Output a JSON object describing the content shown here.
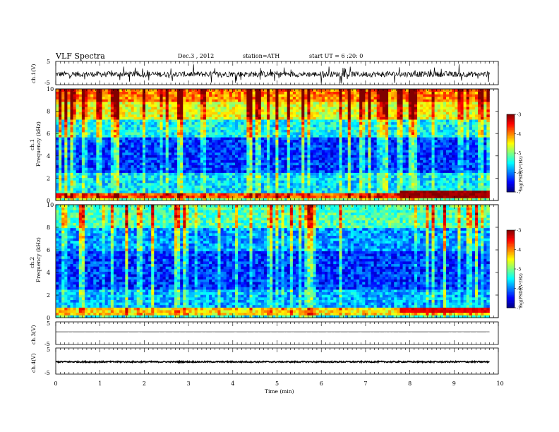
{
  "header": {
    "title": "VLF  Spectra",
    "date": "Dec.3  , 2012",
    "station": "station=ATH",
    "start": "start  UT  =    6  :20: 0"
  },
  "chart_data": [
    {
      "type": "line",
      "panel": "ch1-waveform",
      "ylabel": "ch.1(V)",
      "yticks": [
        "5",
        "-5"
      ],
      "ylim": [
        -5,
        5
      ],
      "xlim": [
        0,
        10
      ],
      "data_extent": [
        0,
        9.8
      ],
      "baseline": -0.5,
      "noise_amplitude": 1.2,
      "spike_amplitude": 3.5,
      "color": "#000000"
    },
    {
      "type": "heatmap",
      "panel": "ch1-spectrogram",
      "ylabel_channel": "ch.1",
      "ylabel": "Frequency  (kHz)",
      "ylim": [
        0,
        10
      ],
      "yticks": [
        "0",
        "2",
        "4",
        "6",
        "8",
        "10"
      ],
      "xlim": [
        0,
        10
      ],
      "data_extent": [
        0,
        9.8
      ],
      "colorbar": {
        "range": [
          -7,
          -3
        ],
        "ticks": [
          "-3",
          "-4",
          "-5",
          "-6",
          "-7"
        ],
        "label": "log(PSD)(V²/Hz)"
      },
      "bands_logpsd": [
        {
          "from": 0,
          "to": 0.3,
          "value": -5.0
        },
        {
          "from": 0.3,
          "to": 0.7,
          "value": -3.8
        },
        {
          "from": 0.7,
          "to": 2.4,
          "value": -5.6
        },
        {
          "from": 2.4,
          "to": 5.6,
          "value": -6.3
        },
        {
          "from": 5.6,
          "to": 7.2,
          "value": -5.5
        },
        {
          "from": 7.2,
          "to": 8.8,
          "value": -4.6
        },
        {
          "from": 8.8,
          "to": 10,
          "value": -4.0
        }
      ],
      "features": [
        {
          "type": "band",
          "from_min": 7.8,
          "to_min": 9.8,
          "f_from": 0.45,
          "f_to": 0.65,
          "value": -3.1
        }
      ]
    },
    {
      "type": "heatmap",
      "panel": "ch2-spectrogram",
      "ylabel_channel": "ch.2",
      "ylabel": "Frequency  (kHz)",
      "ylim": [
        0,
        10
      ],
      "yticks": [
        "0",
        "2",
        "4",
        "6",
        "8",
        "10"
      ],
      "xlim": [
        0,
        10
      ],
      "data_extent": [
        0,
        9.8
      ],
      "colorbar": {
        "range": [
          -7,
          -3
        ],
        "ticks": [
          "-3",
          "-4",
          "-5",
          "-6",
          "-7"
        ],
        "label": "log(PSD)(V²/Hz)"
      },
      "bands_logpsd": [
        {
          "from": 0,
          "to": 0.3,
          "value": -5.5
        },
        {
          "from": 0.3,
          "to": 0.9,
          "value": -4.4
        },
        {
          "from": 0.9,
          "to": 2.5,
          "value": -5.8
        },
        {
          "from": 2.5,
          "to": 6.0,
          "value": -6.3
        },
        {
          "from": 6.0,
          "to": 8.0,
          "value": -5.9
        },
        {
          "from": 8.0,
          "to": 10,
          "value": -5.2
        }
      ],
      "features": [
        {
          "type": "band",
          "from_min": 7.8,
          "to_min": 9.8,
          "f_from": 0.6,
          "f_to": 0.8,
          "value": -3.4
        }
      ]
    },
    {
      "type": "line",
      "panel": "ch3-waveform",
      "ylabel": "ch.3(V)",
      "yticks": [
        "5",
        "-5"
      ],
      "ylim": [
        -5,
        5
      ],
      "xlim": [
        0,
        10
      ],
      "data_extent": [
        0,
        9.8
      ],
      "baseline": 0.6,
      "noise_amplitude": 0.02,
      "spike_amplitude": 0.0,
      "color": "#000000"
    },
    {
      "type": "line",
      "panel": "ch4-waveform",
      "ylabel": "ch.4(V)",
      "yticks": [
        "5",
        "-5"
      ],
      "ylim": [
        -5,
        5
      ],
      "xlim": [
        0,
        10
      ],
      "data_extent": [
        0,
        9.8
      ],
      "baseline": -0.3,
      "noise_amplitude": 0.25,
      "spike_amplitude": 0.0,
      "color": "#000000"
    }
  ],
  "xaxis": {
    "label": "Time  (min)",
    "ticks": [
      "0",
      "1",
      "2",
      "3",
      "4",
      "5",
      "6",
      "7",
      "8",
      "9",
      "10"
    ]
  }
}
